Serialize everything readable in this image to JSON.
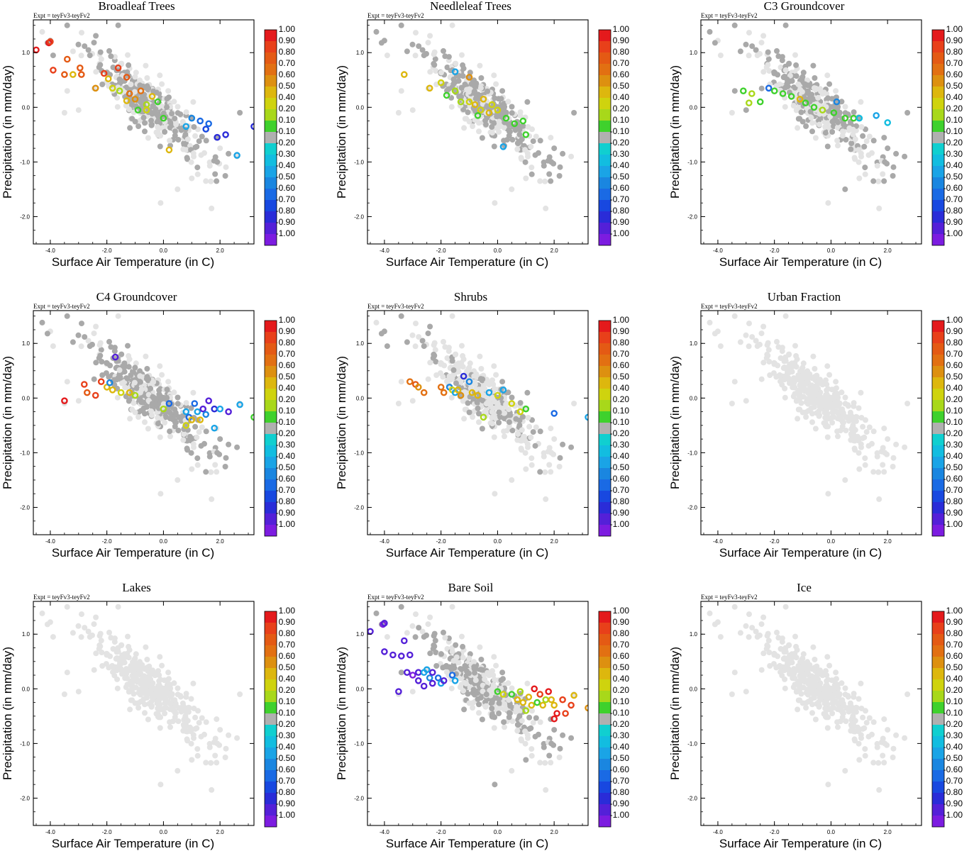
{
  "figure": {
    "expt_label": "Expt = teyFv3-teyFv2",
    "xlabel": "Surface Air Temperature (in C)",
    "ylabel": "Precipitation (in mm/day)",
    "x_ticks": [
      "-4.0",
      "-2.0",
      "0.0",
      "2.0"
    ],
    "y_ticks": [
      "1.0",
      "0.0",
      "-1.0",
      "-2.0"
    ],
    "xlim": [
      -4.6,
      3.2
    ],
    "ylim": [
      -2.5,
      1.6
    ],
    "point_colors": {
      "background": "#e3e3e3",
      "covered": "#a9a9a9"
    }
  },
  "colorbar": {
    "labels": [
      "1.00",
      "0.90",
      "0.80",
      "0.70",
      "0.60",
      "0.50",
      "0.40",
      "0.20",
      "0.10",
      "-0.10",
      "-0.20",
      "-0.30",
      "-0.40",
      "-0.50",
      "-0.60",
      "-0.70",
      "-0.80",
      "-0.90",
      "-1.00"
    ],
    "colors": [
      "#e41a1c",
      "#e8401a",
      "#e45a14",
      "#e27012",
      "#dd9010",
      "#ddb70e",
      "#cfd30e",
      "#a8d81a",
      "#3fd12d",
      "#b0b0b0",
      "#10cfd0",
      "#12bde0",
      "#1aa4e6",
      "#1a86e0",
      "#1a6ae4",
      "#1848e0",
      "#2a2cd8",
      "#5420d8",
      "#7c1ce0"
    ]
  },
  "chart_data": [
    {
      "type": "scatter",
      "title": "Broadleaf Trees",
      "points": [
        {
          "x": -4.5,
          "y": 1.05,
          "v": 0.95
        },
        {
          "x": -4.05,
          "y": 1.18,
          "v": 0.95
        },
        {
          "x": -4.0,
          "y": 1.2,
          "v": 0.9
        },
        {
          "x": -3.4,
          "y": 0.88,
          "v": 0.8
        },
        {
          "x": -3.9,
          "y": 0.68,
          "v": 0.85
        },
        {
          "x": -3.5,
          "y": 0.6,
          "v": 0.8
        },
        {
          "x": -3.2,
          "y": 0.6,
          "v": 0.5
        },
        {
          "x": -2.95,
          "y": 0.72,
          "v": 0.8
        },
        {
          "x": -2.9,
          "y": 0.6,
          "v": 0.8
        },
        {
          "x": -2.4,
          "y": 0.35,
          "v": 0.6
        },
        {
          "x": -2.1,
          "y": 0.62,
          "v": 0.85
        },
        {
          "x": -1.95,
          "y": 0.52,
          "v": 0.4
        },
        {
          "x": -1.8,
          "y": 0.35,
          "v": 0.3
        },
        {
          "x": -1.6,
          "y": 0.72,
          "v": 0.9
        },
        {
          "x": -1.55,
          "y": 0.3,
          "v": 0.2
        },
        {
          "x": -1.3,
          "y": 0.55,
          "v": 0.8
        },
        {
          "x": -1.2,
          "y": 0.25,
          "v": 0.7
        },
        {
          "x": -1.0,
          "y": 0.15,
          "v": 0.6
        },
        {
          "x": -0.8,
          "y": 0.3,
          "v": 0.7
        },
        {
          "x": -0.6,
          "y": 0.05,
          "v": 0.2
        },
        {
          "x": -0.4,
          "y": 0.2,
          "v": 0.4
        },
        {
          "x": -0.2,
          "y": 0.1,
          "v": 0.15
        },
        {
          "x": 0.0,
          "y": -0.2,
          "v": 0.15
        },
        {
          "x": -0.6,
          "y": -0.05,
          "v": 0.3
        },
        {
          "x": -1.3,
          "y": 0.12,
          "v": 0.45
        },
        {
          "x": -0.9,
          "y": -0.05,
          "v": 0.15
        },
        {
          "x": 0.2,
          "y": -0.78,
          "v": 0.45
        },
        {
          "x": 0.8,
          "y": -0.35,
          "v": -0.3
        },
        {
          "x": 1.0,
          "y": -0.2,
          "v": -0.4
        },
        {
          "x": 1.3,
          "y": -0.25,
          "v": -0.5
        },
        {
          "x": 1.5,
          "y": -0.4,
          "v": -0.7
        },
        {
          "x": 1.6,
          "y": -0.3,
          "v": -0.55
        },
        {
          "x": 1.9,
          "y": -0.55,
          "v": -0.8
        },
        {
          "x": 2.2,
          "y": -0.5,
          "v": -0.8
        },
        {
          "x": 2.6,
          "y": -0.88,
          "v": -0.3
        },
        {
          "x": 3.2,
          "y": -0.35,
          "v": -0.8
        }
      ]
    },
    {
      "type": "scatter",
      "title": "Needleleaf Trees",
      "points": [
        {
          "x": -3.3,
          "y": 0.6,
          "v": 0.4
        },
        {
          "x": -2.4,
          "y": 0.35,
          "v": 0.4
        },
        {
          "x": -2.0,
          "y": 0.45,
          "v": 0.3
        },
        {
          "x": -1.8,
          "y": 0.22,
          "v": 0.15
        },
        {
          "x": -1.5,
          "y": 0.3,
          "v": 0.2
        },
        {
          "x": -1.3,
          "y": 0.1,
          "v": 0.2
        },
        {
          "x": -1.0,
          "y": 0.1,
          "v": 0.35
        },
        {
          "x": -0.8,
          "y": 0.05,
          "v": 0.4
        },
        {
          "x": -0.6,
          "y": -0.05,
          "v": 0.3
        },
        {
          "x": -0.5,
          "y": 0.15,
          "v": 0.4
        },
        {
          "x": -0.3,
          "y": -0.1,
          "v": 0.45
        },
        {
          "x": -0.2,
          "y": 0.05,
          "v": 0.35
        },
        {
          "x": 0.0,
          "y": -0.05,
          "v": 0.3
        },
        {
          "x": -0.7,
          "y": -0.15,
          "v": 0.15
        },
        {
          "x": 0.3,
          "y": -0.2,
          "v": 0.15
        },
        {
          "x": 0.6,
          "y": -0.3,
          "v": 0.15
        },
        {
          "x": 0.9,
          "y": -0.25,
          "v": 0.15
        },
        {
          "x": 1.0,
          "y": -0.5,
          "v": 0.15
        },
        {
          "x": 0.2,
          "y": -0.72,
          "v": -0.3
        },
        {
          "x": -1.5,
          "y": 0.65,
          "v": -0.3
        },
        {
          "x": -1.0,
          "y": 0.55,
          "v": 0.6
        }
      ]
    },
    {
      "type": "scatter",
      "title": "C3 Groundcover",
      "points": [
        {
          "x": -3.1,
          "y": 0.3,
          "v": 0.15
        },
        {
          "x": -2.8,
          "y": 0.25,
          "v": 0.2
        },
        {
          "x": -2.9,
          "y": 0.08,
          "v": 0.2
        },
        {
          "x": -2.5,
          "y": 0.1,
          "v": 0.15
        },
        {
          "x": -2.2,
          "y": 0.35,
          "v": -0.6
        },
        {
          "x": -2.0,
          "y": 0.3,
          "v": 0.15
        },
        {
          "x": -1.7,
          "y": 0.25,
          "v": 0.15
        },
        {
          "x": -1.4,
          "y": 0.2,
          "v": 0.1
        },
        {
          "x": -1.1,
          "y": 0.15,
          "v": 0.5
        },
        {
          "x": -0.9,
          "y": 0.08,
          "v": 0.15
        },
        {
          "x": -0.6,
          "y": 0.0,
          "v": 0.15
        },
        {
          "x": -0.3,
          "y": -0.05,
          "v": 0.2
        },
        {
          "x": 0.1,
          "y": -0.1,
          "v": 0.15
        },
        {
          "x": 0.5,
          "y": -0.2,
          "v": 0.15
        },
        {
          "x": 0.8,
          "y": -0.2,
          "v": 0.15
        },
        {
          "x": 1.0,
          "y": -0.2,
          "v": -0.2
        },
        {
          "x": 1.6,
          "y": -0.15,
          "v": -0.3
        },
        {
          "x": 2.0,
          "y": -0.28,
          "v": -0.2
        },
        {
          "x": 0.2,
          "y": 0.1,
          "v": -0.4
        }
      ]
    },
    {
      "type": "scatter",
      "title": "C4 Groundcover",
      "points": [
        {
          "x": -3.5,
          "y": -0.05,
          "v": 0.95
        },
        {
          "x": -2.8,
          "y": 0.25,
          "v": 0.9
        },
        {
          "x": -2.7,
          "y": 0.1,
          "v": 0.8
        },
        {
          "x": -2.4,
          "y": 0.05,
          "v": 0.9
        },
        {
          "x": -2.2,
          "y": 0.3,
          "v": 0.9
        },
        {
          "x": -2.0,
          "y": 0.2,
          "v": 0.4
        },
        {
          "x": -1.8,
          "y": 0.15,
          "v": 0.4
        },
        {
          "x": -1.9,
          "y": 0.28,
          "v": -0.4
        },
        {
          "x": -1.5,
          "y": 0.1,
          "v": 0.3
        },
        {
          "x": -1.2,
          "y": 0.1,
          "v": 0.4
        },
        {
          "x": -1.0,
          "y": 0.05,
          "v": 0.2
        },
        {
          "x": -1.7,
          "y": 0.75,
          "v": -0.85
        },
        {
          "x": 0.0,
          "y": -0.2,
          "v": 0.2
        },
        {
          "x": 0.2,
          "y": -0.1,
          "v": -0.5
        },
        {
          "x": 0.8,
          "y": -0.25,
          "v": -0.3
        },
        {
          "x": 0.9,
          "y": -0.35,
          "v": -0.5
        },
        {
          "x": 0.8,
          "y": -0.5,
          "v": 0.3
        },
        {
          "x": 1.0,
          "y": -0.4,
          "v": 0.4
        },
        {
          "x": 1.1,
          "y": -0.1,
          "v": -0.6
        },
        {
          "x": 1.2,
          "y": -0.25,
          "v": -0.3
        },
        {
          "x": 1.3,
          "y": -0.4,
          "v": 0.5
        },
        {
          "x": 1.4,
          "y": -0.2,
          "v": -0.9
        },
        {
          "x": 1.5,
          "y": -0.3,
          "v": -0.4
        },
        {
          "x": 1.6,
          "y": -0.05,
          "v": -0.85
        },
        {
          "x": 1.8,
          "y": -0.2,
          "v": -0.8
        },
        {
          "x": 2.0,
          "y": -0.2,
          "v": -0.3
        },
        {
          "x": 1.8,
          "y": -0.55,
          "v": -0.3
        },
        {
          "x": 2.3,
          "y": -0.25,
          "v": -0.85
        },
        {
          "x": 2.7,
          "y": -0.12,
          "v": -0.3
        },
        {
          "x": 3.2,
          "y": -0.35,
          "v": 0.1
        }
      ]
    },
    {
      "type": "scatter",
      "title": "Shrubs",
      "points": [
        {
          "x": -3.1,
          "y": 0.3,
          "v": 0.7
        },
        {
          "x": -2.9,
          "y": 0.25,
          "v": 0.8
        },
        {
          "x": -2.8,
          "y": 0.2,
          "v": 0.6
        },
        {
          "x": -2.6,
          "y": 0.1,
          "v": 0.7
        },
        {
          "x": -2.0,
          "y": 0.2,
          "v": 0.7
        },
        {
          "x": -1.9,
          "y": 0.1,
          "v": 0.7
        },
        {
          "x": -1.7,
          "y": 0.2,
          "v": -0.4
        },
        {
          "x": -1.6,
          "y": 0.15,
          "v": 0.3
        },
        {
          "x": -1.5,
          "y": 0.1,
          "v": -0.3
        },
        {
          "x": -1.4,
          "y": 0.15,
          "v": 0.5
        },
        {
          "x": -1.3,
          "y": 0.05,
          "v": 0.6
        },
        {
          "x": -1.2,
          "y": 0.4,
          "v": -0.75
        },
        {
          "x": -1.0,
          "y": 0.3,
          "v": -0.45
        },
        {
          "x": -0.9,
          "y": 0.1,
          "v": 0.5
        },
        {
          "x": -0.7,
          "y": 0.05,
          "v": 0.4
        },
        {
          "x": -0.5,
          "y": -0.35,
          "v": 0.2
        },
        {
          "x": -0.3,
          "y": 0.1,
          "v": -0.3
        },
        {
          "x": 0.0,
          "y": 0.05,
          "v": 0.3
        },
        {
          "x": 0.2,
          "y": 0.15,
          "v": -0.3
        },
        {
          "x": 0.5,
          "y": -0.1,
          "v": 0.3
        },
        {
          "x": 0.8,
          "y": -0.25,
          "v": 0.3
        },
        {
          "x": 1.0,
          "y": -0.2,
          "v": 0.15
        },
        {
          "x": 2.0,
          "y": -0.28,
          "v": -0.55
        },
        {
          "x": 3.2,
          "y": -0.35,
          "v": -0.3
        }
      ]
    },
    {
      "type": "scatter",
      "title": "Urban Fraction",
      "points": []
    },
    {
      "type": "scatter",
      "title": "Lakes",
      "points": []
    },
    {
      "type": "scatter",
      "title": "Bare Soil",
      "points": [
        {
          "x": -4.5,
          "y": 1.05,
          "v": -0.9
        },
        {
          "x": -4.05,
          "y": 1.18,
          "v": -0.95
        },
        {
          "x": -4.0,
          "y": 1.2,
          "v": -0.9
        },
        {
          "x": -4.0,
          "y": 0.68,
          "v": -0.9
        },
        {
          "x": -3.7,
          "y": 0.62,
          "v": -0.85
        },
        {
          "x": -3.4,
          "y": 0.6,
          "v": -0.9
        },
        {
          "x": -3.3,
          "y": 0.88,
          "v": -0.9
        },
        {
          "x": -3.1,
          "y": 0.62,
          "v": -0.85
        },
        {
          "x": -3.2,
          "y": 0.3,
          "v": -0.9
        },
        {
          "x": -3.0,
          "y": 0.25,
          "v": -0.95
        },
        {
          "x": -2.8,
          "y": 0.3,
          "v": -0.9
        },
        {
          "x": -2.8,
          "y": 0.15,
          "v": -0.85
        },
        {
          "x": -2.6,
          "y": 0.3,
          "v": -0.3
        },
        {
          "x": -2.4,
          "y": 0.2,
          "v": -0.45
        },
        {
          "x": -2.3,
          "y": 0.3,
          "v": -0.9
        },
        {
          "x": -2.1,
          "y": 0.2,
          "v": -0.6
        },
        {
          "x": -2.0,
          "y": 0.1,
          "v": -0.3
        },
        {
          "x": -1.9,
          "y": 0.15,
          "v": -0.9
        },
        {
          "x": -1.6,
          "y": 0.25,
          "v": -0.5
        },
        {
          "x": -1.5,
          "y": 0.15,
          "v": -0.3
        },
        {
          "x": -2.3,
          "y": 0.1,
          "v": -0.9
        },
        {
          "x": -2.6,
          "y": 0.05,
          "v": -0.85
        },
        {
          "x": -3.5,
          "y": -0.05,
          "v": -0.9
        },
        {
          "x": -2.5,
          "y": 0.35,
          "v": -0.3
        },
        {
          "x": 0.0,
          "y": -0.05,
          "v": 0.15
        },
        {
          "x": 0.2,
          "y": -0.1,
          "v": 0.3
        },
        {
          "x": 0.5,
          "y": -0.1,
          "v": 0.15
        },
        {
          "x": 0.7,
          "y": -0.2,
          "v": 0.4
        },
        {
          "x": 0.8,
          "y": -0.05,
          "v": 0.2
        },
        {
          "x": 0.9,
          "y": -0.25,
          "v": 0.45
        },
        {
          "x": 1.0,
          "y": -0.4,
          "v": 0.2
        },
        {
          "x": 1.1,
          "y": -0.15,
          "v": 0.5
        },
        {
          "x": 1.2,
          "y": -0.3,
          "v": 0.4
        },
        {
          "x": 1.3,
          "y": 0.0,
          "v": 0.95
        },
        {
          "x": 1.4,
          "y": -0.25,
          "v": 0.15
        },
        {
          "x": 1.5,
          "y": -0.1,
          "v": 0.9
        },
        {
          "x": 1.6,
          "y": -0.3,
          "v": 0.4
        },
        {
          "x": 1.7,
          "y": -0.2,
          "v": 0.2
        },
        {
          "x": 1.8,
          "y": -0.05,
          "v": 0.95
        },
        {
          "x": 1.9,
          "y": -0.2,
          "v": 0.5
        },
        {
          "x": 2.0,
          "y": -0.3,
          "v": 0.4
        },
        {
          "x": 2.0,
          "y": -0.55,
          "v": 0.95
        },
        {
          "x": 2.1,
          "y": -0.45,
          "v": 0.95
        },
        {
          "x": 2.3,
          "y": -0.2,
          "v": 0.9
        },
        {
          "x": 2.4,
          "y": -0.45,
          "v": 0.9
        },
        {
          "x": 2.6,
          "y": -0.3,
          "v": 0.9
        },
        {
          "x": 2.7,
          "y": -0.12,
          "v": 0.4
        },
        {
          "x": 3.2,
          "y": -0.35,
          "v": 0.6
        }
      ]
    },
    {
      "type": "scatter",
      "title": "Ice",
      "points": []
    }
  ]
}
